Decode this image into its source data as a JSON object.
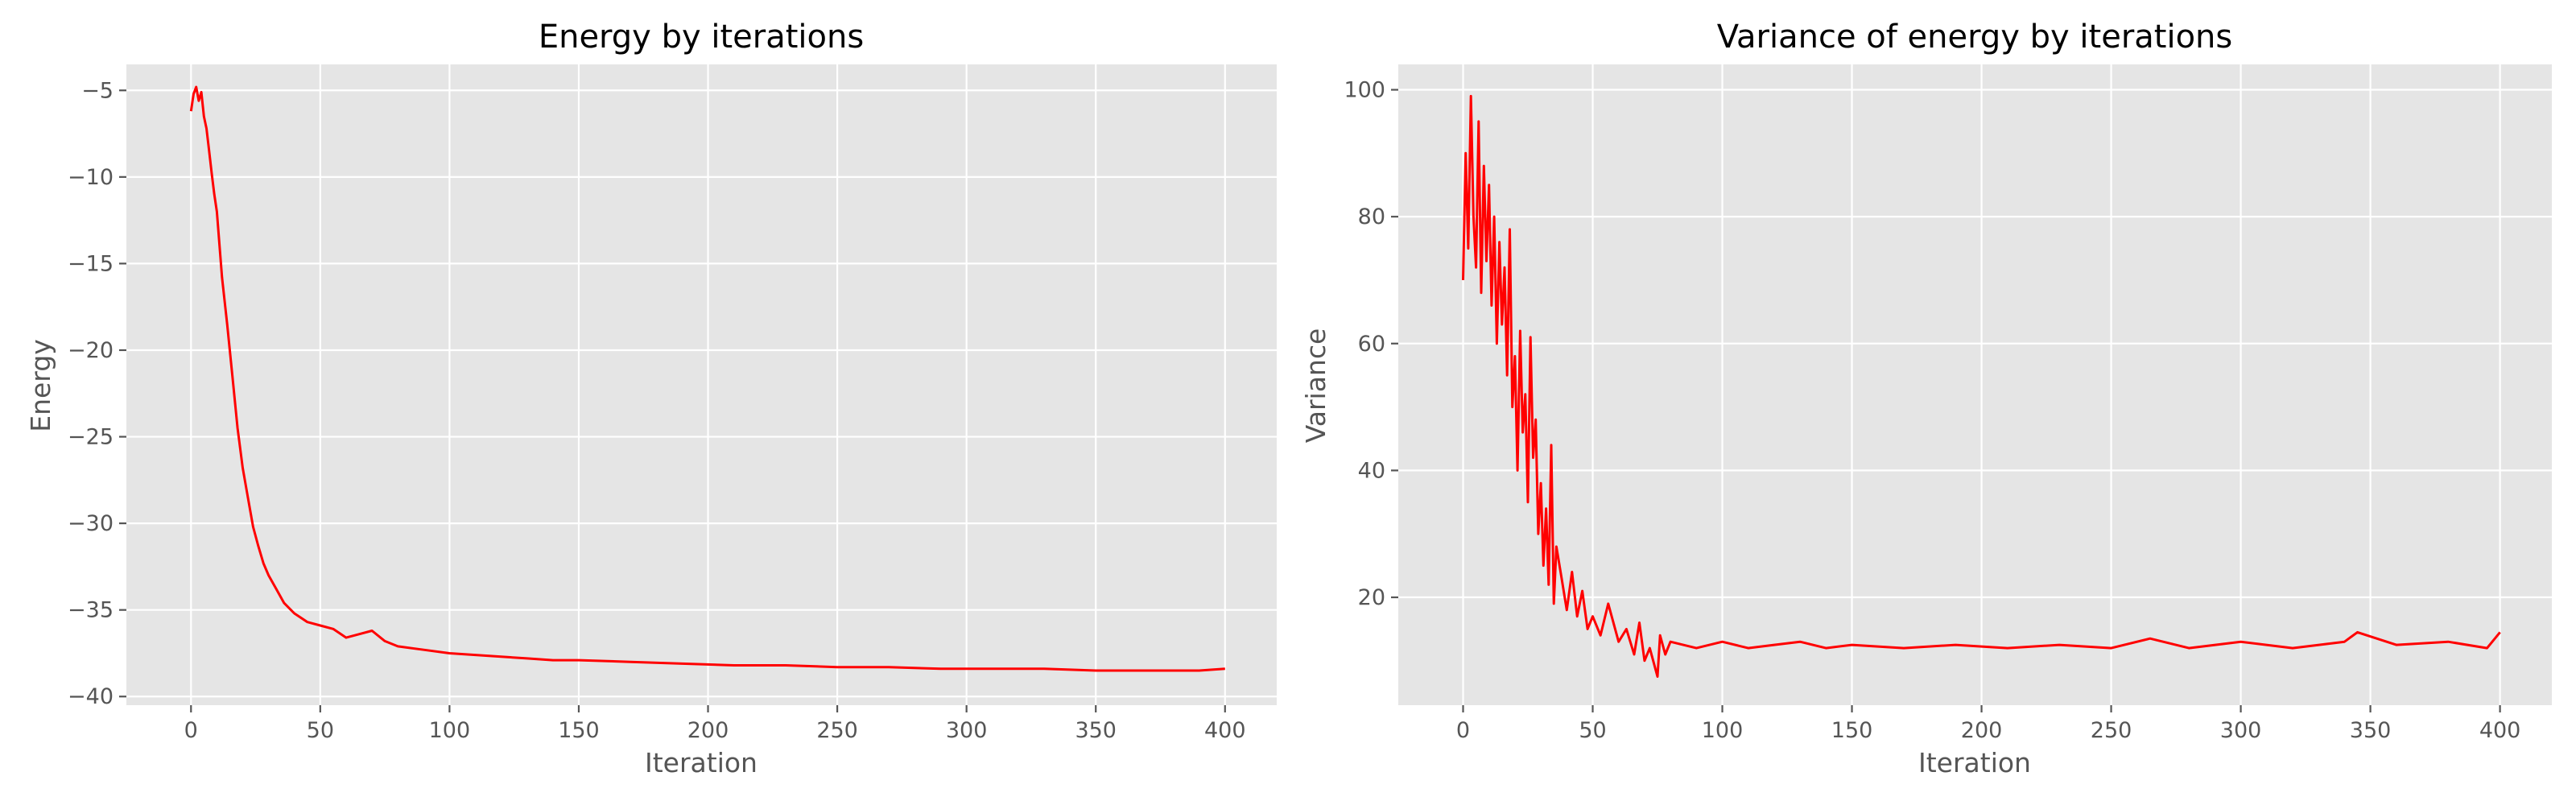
{
  "style": {
    "series_color": "#ff0000",
    "panel_background": "#e5e5e5",
    "grid_color": "#ffffff",
    "grid": true
  },
  "chart_data": [
    {
      "type": "line",
      "title": "Energy by iterations",
      "xlabel": "Iteration",
      "ylabel": "Energy",
      "xlim": [
        -25,
        420
      ],
      "ylim": [
        -40.5,
        -3.5
      ],
      "xticks": [
        0,
        50,
        100,
        150,
        200,
        250,
        300,
        350,
        400
      ],
      "yticks": [
        -40,
        -35,
        -30,
        -25,
        -20,
        -15,
        -10,
        -5
      ],
      "xtick_labels": [
        "0",
        "50",
        "100",
        "150",
        "200",
        "250",
        "300",
        "350",
        "400"
      ],
      "ytick_labels": [
        "−40",
        "−35",
        "−30",
        "−25",
        "−20",
        "−15",
        "−10",
        "−5"
      ],
      "series": [
        {
          "color": "#ff0000",
          "x": [
            0,
            1,
            2,
            3,
            4,
            5,
            6,
            7,
            8,
            9,
            10,
            12,
            14,
            16,
            18,
            20,
            22,
            24,
            26,
            28,
            30,
            33,
            36,
            40,
            45,
            50,
            55,
            60,
            65,
            70,
            75,
            80,
            90,
            100,
            110,
            120,
            130,
            140,
            150,
            170,
            190,
            210,
            230,
            250,
            270,
            290,
            310,
            330,
            350,
            370,
            390,
            400
          ],
          "y": [
            -6.2,
            -5.2,
            -4.8,
            -5.6,
            -5.1,
            -6.5,
            -7.2,
            -8.5,
            -9.8,
            -11.0,
            -12.0,
            -15.8,
            -18.5,
            -21.5,
            -24.5,
            -26.8,
            -28.5,
            -30.2,
            -31.3,
            -32.3,
            -33.0,
            -33.8,
            -34.6,
            -35.2,
            -35.7,
            -35.9,
            -36.1,
            -36.6,
            -36.4,
            -36.2,
            -36.8,
            -37.1,
            -37.3,
            -37.5,
            -37.6,
            -37.7,
            -37.8,
            -37.9,
            -37.9,
            -38.0,
            -38.1,
            -38.2,
            -38.2,
            -38.3,
            -38.3,
            -38.4,
            -38.4,
            -38.4,
            -38.5,
            -38.5,
            -38.5,
            -38.4
          ]
        }
      ]
    },
    {
      "type": "line",
      "title": "Variance of energy by iterations",
      "xlabel": "Iteration",
      "ylabel": "Variance",
      "xlim": [
        -25,
        420
      ],
      "ylim": [
        3,
        104
      ],
      "xticks": [
        0,
        50,
        100,
        150,
        200,
        250,
        300,
        350,
        400
      ],
      "yticks": [
        20,
        40,
        60,
        80,
        100
      ],
      "xtick_labels": [
        "0",
        "50",
        "100",
        "150",
        "200",
        "250",
        "300",
        "350",
        "400"
      ],
      "ytick_labels": [
        "20",
        "40",
        "60",
        "80",
        "100"
      ],
      "series": [
        {
          "color": "#ff0000",
          "x": [
            0,
            1,
            2,
            3,
            4,
            5,
            6,
            7,
            8,
            9,
            10,
            11,
            12,
            13,
            14,
            15,
            16,
            17,
            18,
            19,
            20,
            21,
            22,
            23,
            24,
            25,
            26,
            27,
            28,
            29,
            30,
            31,
            32,
            33,
            34,
            35,
            36,
            38,
            40,
            42,
            44,
            46,
            48,
            50,
            53,
            56,
            60,
            63,
            66,
            68,
            70,
            72,
            74,
            75,
            76,
            78,
            80,
            90,
            100,
            110,
            120,
            130,
            140,
            150,
            170,
            190,
            210,
            230,
            250,
            265,
            280,
            300,
            320,
            340,
            345,
            360,
            380,
            395,
            400
          ],
          "y": [
            70,
            90,
            75,
            99,
            80,
            72,
            95,
            68,
            88,
            73,
            85,
            66,
            80,
            60,
            76,
            63,
            72,
            55,
            78,
            50,
            58,
            40,
            62,
            46,
            52,
            35,
            61,
            42,
            48,
            30,
            38,
            25,
            34,
            22,
            44,
            19,
            28,
            23,
            18,
            24,
            17,
            21,
            15,
            17,
            14,
            19,
            13,
            15,
            11,
            16,
            10,
            12,
            9,
            7.5,
            14,
            11,
            13,
            12,
            13,
            12,
            12.5,
            13,
            12,
            12.5,
            12,
            12.5,
            12,
            12.5,
            12,
            13.5,
            12,
            13,
            12,
            13,
            14.5,
            12.5,
            13,
            12,
            14.5
          ]
        }
      ]
    }
  ]
}
